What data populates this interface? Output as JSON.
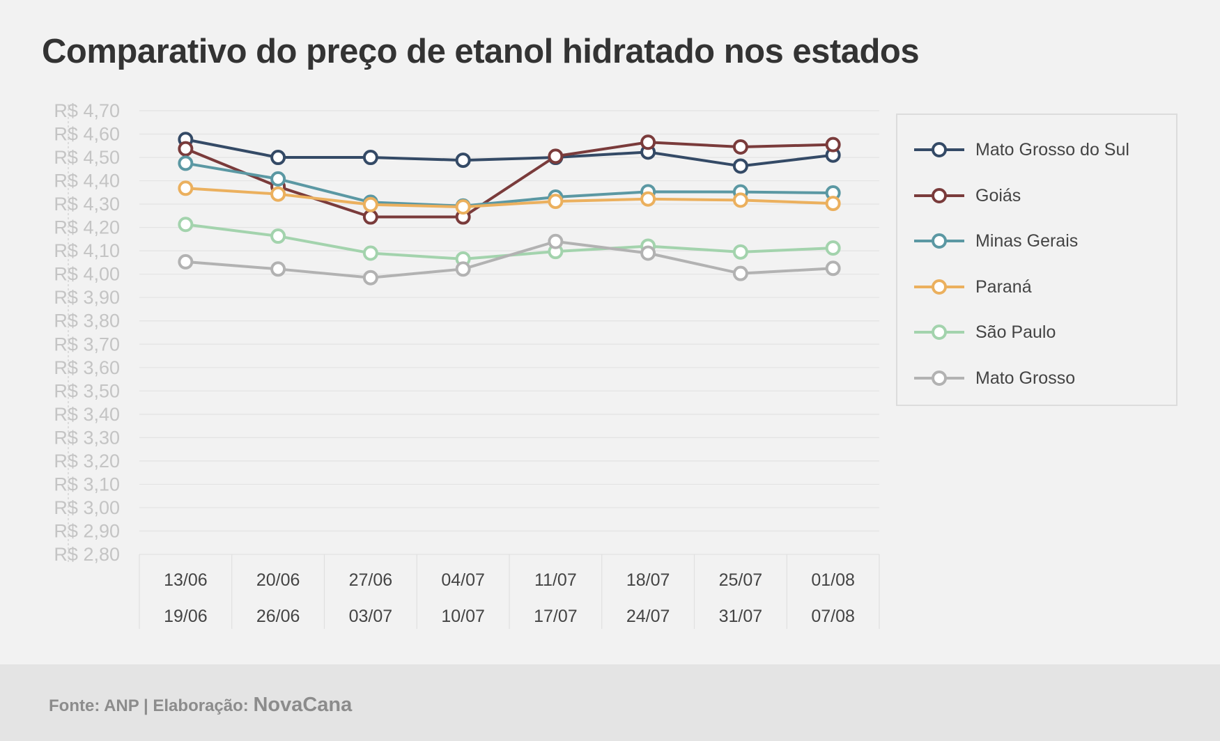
{
  "title": "Comparativo do preço de etanol hidratado nos estados",
  "footer": {
    "source": "Fonte: ANP | Elaboração:",
    "brand": "NovaCana"
  },
  "colors": {
    "background": "#f2f2f2",
    "grid": "#e3e3e3",
    "tick_label": "#c4c4c4",
    "category_label": "#444444"
  },
  "chart_data": {
    "type": "line",
    "title": "Comparativo do preço de etanol hidratado nos estados",
    "xlabel": "",
    "ylabel": "",
    "ylim": [
      2.8,
      4.7
    ],
    "y_ticks": [
      "R$ 4,70",
      "R$ 4,60",
      "R$ 4,50",
      "R$ 4,40",
      "R$ 4,30",
      "R$ 4,20",
      "R$ 4,10",
      "R$ 4,00",
      "R$ 3,90",
      "R$ 3,80",
      "R$ 3,70",
      "R$ 3,60",
      "R$ 3,50",
      "R$ 3,40",
      "R$ 3,30",
      "R$ 3,20",
      "R$ 3,10",
      "R$ 3,00",
      "R$ 2,90",
      "R$ 2,80"
    ],
    "categories": [
      {
        "start": "13/06",
        "end": "19/06"
      },
      {
        "start": "20/06",
        "end": "26/06"
      },
      {
        "start": "27/06",
        "end": "03/07"
      },
      {
        "start": "04/07",
        "end": "10/07"
      },
      {
        "start": "11/07",
        "end": "17/07"
      },
      {
        "start": "18/07",
        "end": "24/07"
      },
      {
        "start": "25/07",
        "end": "31/07"
      },
      {
        "start": "01/08",
        "end": "07/08"
      }
    ],
    "grid": true,
    "legend_position": "right",
    "series": [
      {
        "name": "Mato Grosso do Sul",
        "color": "#344a66",
        "values": [
          4.577,
          4.5,
          4.5,
          4.488,
          4.5,
          4.523,
          4.463,
          4.51
        ]
      },
      {
        "name": "Goiás",
        "color": "#7a3b3b",
        "values": [
          4.537,
          4.375,
          4.245,
          4.245,
          4.505,
          4.565,
          4.545,
          4.555
        ]
      },
      {
        "name": "Minas Gerais",
        "color": "#5b98a3",
        "values": [
          4.475,
          4.408,
          4.308,
          4.292,
          4.33,
          4.353,
          4.352,
          4.348
        ]
      },
      {
        "name": "Paraná",
        "color": "#ebb05e",
        "values": [
          4.368,
          4.343,
          4.298,
          4.288,
          4.312,
          4.322,
          4.317,
          4.303
        ]
      },
      {
        "name": "São Paulo",
        "color": "#a3d3ad",
        "values": [
          4.213,
          4.163,
          4.09,
          4.065,
          4.097,
          4.12,
          4.095,
          4.112
        ]
      },
      {
        "name": "Mato Grosso",
        "color": "#b2b2b2",
        "values": [
          4.053,
          4.022,
          3.985,
          4.022,
          4.14,
          4.09,
          4.003,
          4.025
        ]
      }
    ]
  }
}
